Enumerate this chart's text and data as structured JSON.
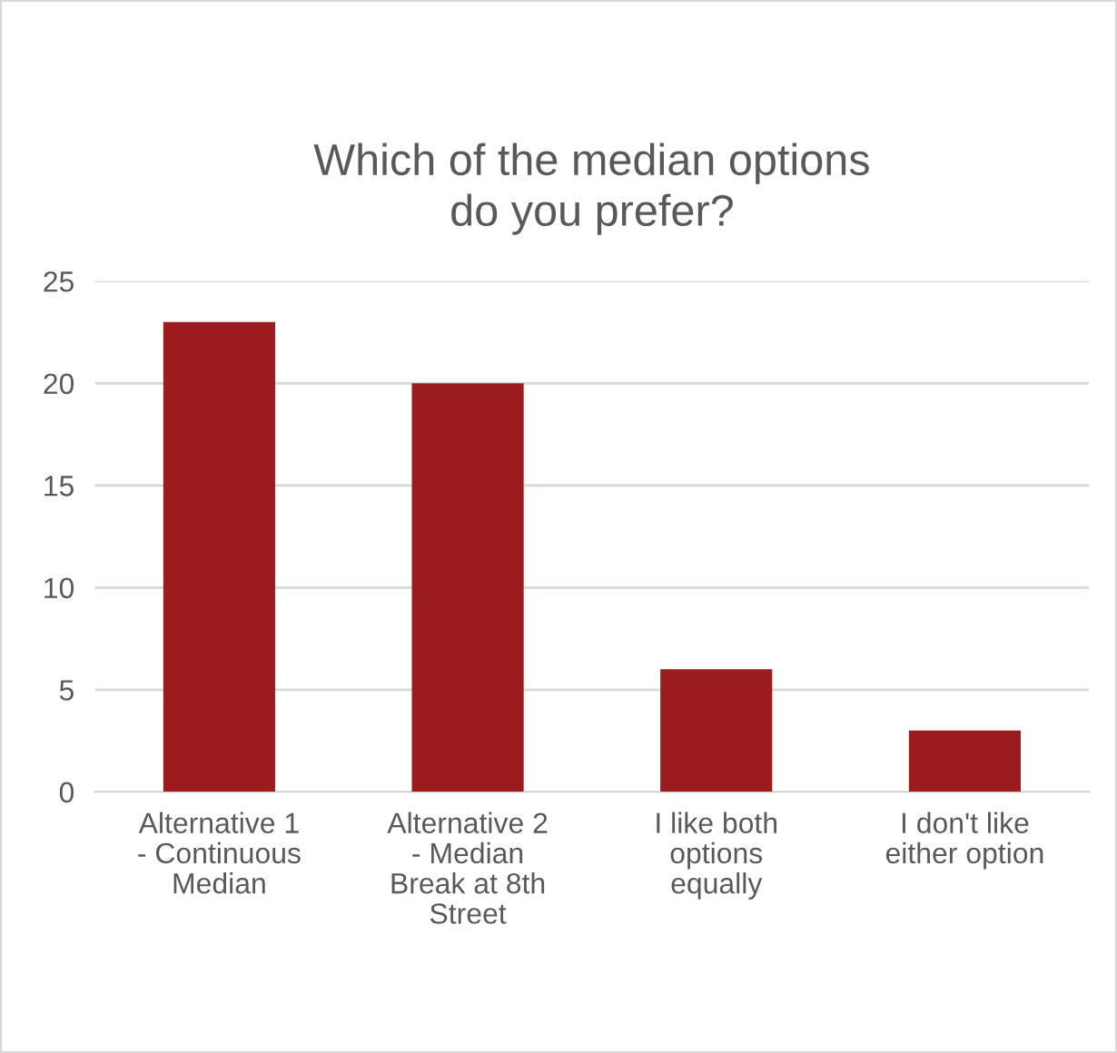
{
  "chart_data": {
    "type": "bar",
    "title": "Which of the median options\ndo you prefer?",
    "categories": [
      "Alternative 1\n- Continuous\nMedian",
      "Alternative 2\n- Median\nBreak at 8th\nStreet",
      "I like both\noptions\nequally",
      "I don't like\neither option"
    ],
    "values": [
      23,
      20,
      6,
      3
    ],
    "color": "#9b1b1f",
    "ylim": [
      0,
      25
    ],
    "yticks": [
      0,
      5,
      10,
      15,
      20,
      25
    ],
    "grid": "y"
  }
}
